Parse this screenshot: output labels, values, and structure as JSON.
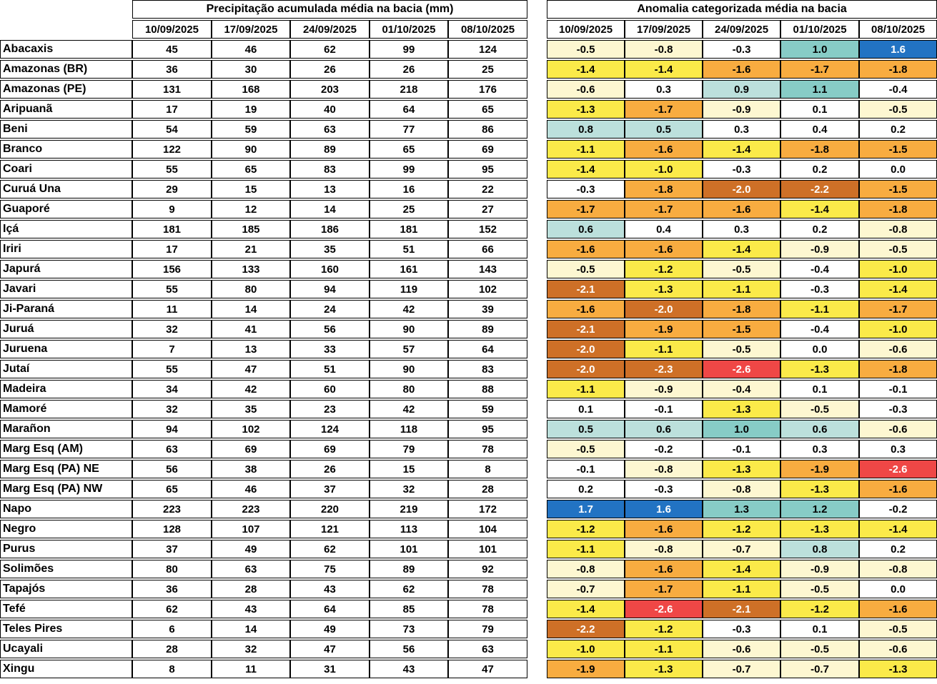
{
  "palette": {
    "white": "#FFFFFF",
    "cream": "#FDF7D1",
    "yellow": "#FBEA49",
    "orange": "#F8AC40",
    "darkorange": "#CE7027",
    "red": "#EF4746",
    "lightblue": "#BCE0DC",
    "teal": "#87CCC6",
    "blue": "#2273C3"
  },
  "dark_categories": [
    "darkorange",
    "red",
    "blue"
  ],
  "chart_data": [
    {
      "type": "table",
      "title": "Precipitação acumulada média na bacia (mm)",
      "columns": [
        "10/09/2025",
        "17/09/2025",
        "24/09/2025",
        "01/10/2025",
        "08/10/2025"
      ],
      "row_labels": [
        "Abacaxis",
        "Amazonas (BR)",
        "Amazonas (PE)",
        "Aripuanã",
        "Beni",
        "Branco",
        "Coari",
        "Curuá Una",
        "Guaporé",
        "Içá",
        "Iriri",
        "Japurá",
        "Javari",
        "Ji-Paraná",
        "Juruá",
        "Juruena",
        "Jutaí",
        "Madeira",
        "Mamoré",
        "Marañon",
        "Marg Esq (AM)",
        "Marg Esq (PA) NE",
        "Marg Esq (PA) NW",
        "Napo",
        "Negro",
        "Purus",
        "Solimões",
        "Tapajós",
        "Tefé",
        "Teles Pires",
        "Ucayali",
        "Xingu"
      ],
      "values": [
        [
          45,
          46,
          62,
          99,
          124
        ],
        [
          36,
          30,
          26,
          26,
          25
        ],
        [
          131,
          168,
          203,
          218,
          176
        ],
        [
          17,
          19,
          40,
          64,
          65
        ],
        [
          54,
          59,
          63,
          77,
          86
        ],
        [
          122,
          90,
          89,
          65,
          69
        ],
        [
          55,
          65,
          83,
          99,
          95
        ],
        [
          29,
          15,
          13,
          16,
          22
        ],
        [
          9,
          12,
          14,
          25,
          27
        ],
        [
          181,
          185,
          186,
          181,
          152
        ],
        [
          17,
          21,
          35,
          51,
          66
        ],
        [
          156,
          133,
          160,
          161,
          143
        ],
        [
          55,
          80,
          94,
          119,
          102
        ],
        [
          11,
          14,
          24,
          42,
          39
        ],
        [
          32,
          41,
          56,
          90,
          89
        ],
        [
          7,
          13,
          33,
          57,
          64
        ],
        [
          55,
          47,
          51,
          90,
          83
        ],
        [
          34,
          42,
          60,
          80,
          88
        ],
        [
          32,
          35,
          23,
          42,
          59
        ],
        [
          94,
          102,
          124,
          118,
          95
        ],
        [
          63,
          69,
          69,
          79,
          78
        ],
        [
          56,
          38,
          26,
          15,
          8
        ],
        [
          65,
          46,
          37,
          32,
          28
        ],
        [
          223,
          223,
          220,
          219,
          172
        ],
        [
          128,
          107,
          121,
          113,
          104
        ],
        [
          37,
          49,
          62,
          101,
          101
        ],
        [
          80,
          63,
          75,
          89,
          92
        ],
        [
          36,
          28,
          43,
          62,
          78
        ],
        [
          62,
          43,
          64,
          85,
          78
        ],
        [
          6,
          14,
          49,
          73,
          79
        ],
        [
          28,
          32,
          47,
          56,
          63
        ],
        [
          8,
          11,
          31,
          43,
          47
        ]
      ]
    },
    {
      "type": "heatmap",
      "title": "Anomalia categorizada média na bacia",
      "columns": [
        "10/09/2025",
        "17/09/2025",
        "24/09/2025",
        "01/10/2025",
        "08/10/2025"
      ],
      "row_labels": [
        "Abacaxis",
        "Amazonas (BR)",
        "Amazonas (PE)",
        "Aripuanã",
        "Beni",
        "Branco",
        "Coari",
        "Curuá Una",
        "Guaporé",
        "Içá",
        "Iriri",
        "Japurá",
        "Javari",
        "Ji-Paraná",
        "Juruá",
        "Juruena",
        "Jutaí",
        "Madeira",
        "Mamoré",
        "Marañon",
        "Marg Esq (AM)",
        "Marg Esq (PA) NE",
        "Marg Esq (PA) NW",
        "Napo",
        "Negro",
        "Purus",
        "Solimões",
        "Tapajós",
        "Tefé",
        "Teles Pires",
        "Ucayali",
        "Xingu"
      ],
      "values": [
        [
          "-0.5",
          "-0.8",
          "-0.3",
          "1.0",
          "1.6"
        ],
        [
          "-1.4",
          "-1.4",
          "-1.6",
          "-1.7",
          "-1.8"
        ],
        [
          "-0.6",
          "0.3",
          "0.9",
          "1.1",
          "-0.4"
        ],
        [
          "-1.3",
          "-1.7",
          "-0.9",
          "0.1",
          "-0.5"
        ],
        [
          "0.8",
          "0.5",
          "0.3",
          "0.4",
          "0.2"
        ],
        [
          "-1.1",
          "-1.6",
          "-1.4",
          "-1.8",
          "-1.5"
        ],
        [
          "-1.4",
          "-1.0",
          "-0.3",
          "0.2",
          "0.0"
        ],
        [
          "-0.3",
          "-1.8",
          "-2.0",
          "-2.2",
          "-1.5"
        ],
        [
          "-1.7",
          "-1.7",
          "-1.6",
          "-1.4",
          "-1.8"
        ],
        [
          "0.6",
          "0.4",
          "0.3",
          "0.2",
          "-0.8"
        ],
        [
          "-1.6",
          "-1.6",
          "-1.4",
          "-0.9",
          "-0.5"
        ],
        [
          "-0.5",
          "-1.2",
          "-0.5",
          "-0.4",
          "-1.0"
        ],
        [
          "-2.1",
          "-1.3",
          "-1.1",
          "-0.3",
          "-1.4"
        ],
        [
          "-1.6",
          "-2.0",
          "-1.8",
          "-1.1",
          "-1.7"
        ],
        [
          "-2.1",
          "-1.9",
          "-1.5",
          "-0.4",
          "-1.0"
        ],
        [
          "-2.0",
          "-1.1",
          "-0.5",
          "0.0",
          "-0.6"
        ],
        [
          "-2.0",
          "-2.3",
          "-2.6",
          "-1.3",
          "-1.8"
        ],
        [
          "-1.1",
          "-0.9",
          "-0.4",
          "0.1",
          "-0.1"
        ],
        [
          "0.1",
          "-0.1",
          "-1.3",
          "-0.5",
          "-0.3"
        ],
        [
          "0.5",
          "0.6",
          "1.0",
          "0.6",
          "-0.6"
        ],
        [
          "-0.5",
          "-0.2",
          "-0.1",
          "0.3",
          "0.3"
        ],
        [
          "-0.1",
          "-0.8",
          "-1.3",
          "-1.9",
          "-2.6"
        ],
        [
          "0.2",
          "-0.3",
          "-0.8",
          "-1.3",
          "-1.6"
        ],
        [
          "1.7",
          "1.6",
          "1.3",
          "1.2",
          "-0.2"
        ],
        [
          "-1.2",
          "-1.6",
          "-1.2",
          "-1.3",
          "-1.4"
        ],
        [
          "-1.1",
          "-0.8",
          "-0.7",
          "0.8",
          "0.2"
        ],
        [
          "-0.8",
          "-1.6",
          "-1.4",
          "-0.9",
          "-0.8"
        ],
        [
          "-0.7",
          "-1.7",
          "-1.1",
          "-0.5",
          "0.0"
        ],
        [
          "-1.4",
          "-2.6",
          "-2.1",
          "-1.2",
          "-1.6"
        ],
        [
          "-2.2",
          "-1.2",
          "-0.3",
          "0.1",
          "-0.5"
        ],
        [
          "-1.0",
          "-1.1",
          "-0.6",
          "-0.5",
          "-0.6"
        ],
        [
          "-1.9",
          "-1.3",
          "-0.7",
          "-0.7",
          "-1.3"
        ]
      ],
      "cell_categories": [
        [
          "cream",
          "cream",
          "white",
          "teal",
          "blue"
        ],
        [
          "yellow",
          "yellow",
          "orange",
          "orange",
          "orange"
        ],
        [
          "cream",
          "white",
          "lightblue",
          "teal",
          "white"
        ],
        [
          "yellow",
          "orange",
          "cream",
          "white",
          "cream"
        ],
        [
          "lightblue",
          "lightblue",
          "white",
          "white",
          "white"
        ],
        [
          "yellow",
          "orange",
          "yellow",
          "orange",
          "orange"
        ],
        [
          "yellow",
          "yellow",
          "white",
          "white",
          "white"
        ],
        [
          "white",
          "orange",
          "darkorange",
          "darkorange",
          "orange"
        ],
        [
          "orange",
          "orange",
          "orange",
          "yellow",
          "orange"
        ],
        [
          "lightblue",
          "white",
          "white",
          "white",
          "cream"
        ],
        [
          "orange",
          "orange",
          "yellow",
          "cream",
          "cream"
        ],
        [
          "cream",
          "yellow",
          "cream",
          "white",
          "yellow"
        ],
        [
          "darkorange",
          "yellow",
          "yellow",
          "white",
          "yellow"
        ],
        [
          "orange",
          "darkorange",
          "orange",
          "yellow",
          "orange"
        ],
        [
          "darkorange",
          "orange",
          "orange",
          "white",
          "yellow"
        ],
        [
          "darkorange",
          "yellow",
          "cream",
          "white",
          "cream"
        ],
        [
          "darkorange",
          "darkorange",
          "red",
          "yellow",
          "orange"
        ],
        [
          "yellow",
          "cream",
          "cream",
          "white",
          "white"
        ],
        [
          "white",
          "white",
          "yellow",
          "cream",
          "white"
        ],
        [
          "lightblue",
          "lightblue",
          "teal",
          "lightblue",
          "cream"
        ],
        [
          "cream",
          "white",
          "white",
          "white",
          "white"
        ],
        [
          "white",
          "cream",
          "yellow",
          "orange",
          "red"
        ],
        [
          "white",
          "white",
          "cream",
          "yellow",
          "orange"
        ],
        [
          "blue",
          "blue",
          "teal",
          "teal",
          "white"
        ],
        [
          "yellow",
          "orange",
          "yellow",
          "yellow",
          "yellow"
        ],
        [
          "yellow",
          "cream",
          "cream",
          "lightblue",
          "white"
        ],
        [
          "cream",
          "orange",
          "yellow",
          "cream",
          "cream"
        ],
        [
          "cream",
          "orange",
          "yellow",
          "cream",
          "white"
        ],
        [
          "yellow",
          "red",
          "darkorange",
          "yellow",
          "orange"
        ],
        [
          "darkorange",
          "yellow",
          "white",
          "white",
          "cream"
        ],
        [
          "yellow",
          "yellow",
          "cream",
          "cream",
          "cream"
        ],
        [
          "orange",
          "yellow",
          "cream",
          "cream",
          "yellow"
        ]
      ]
    }
  ]
}
